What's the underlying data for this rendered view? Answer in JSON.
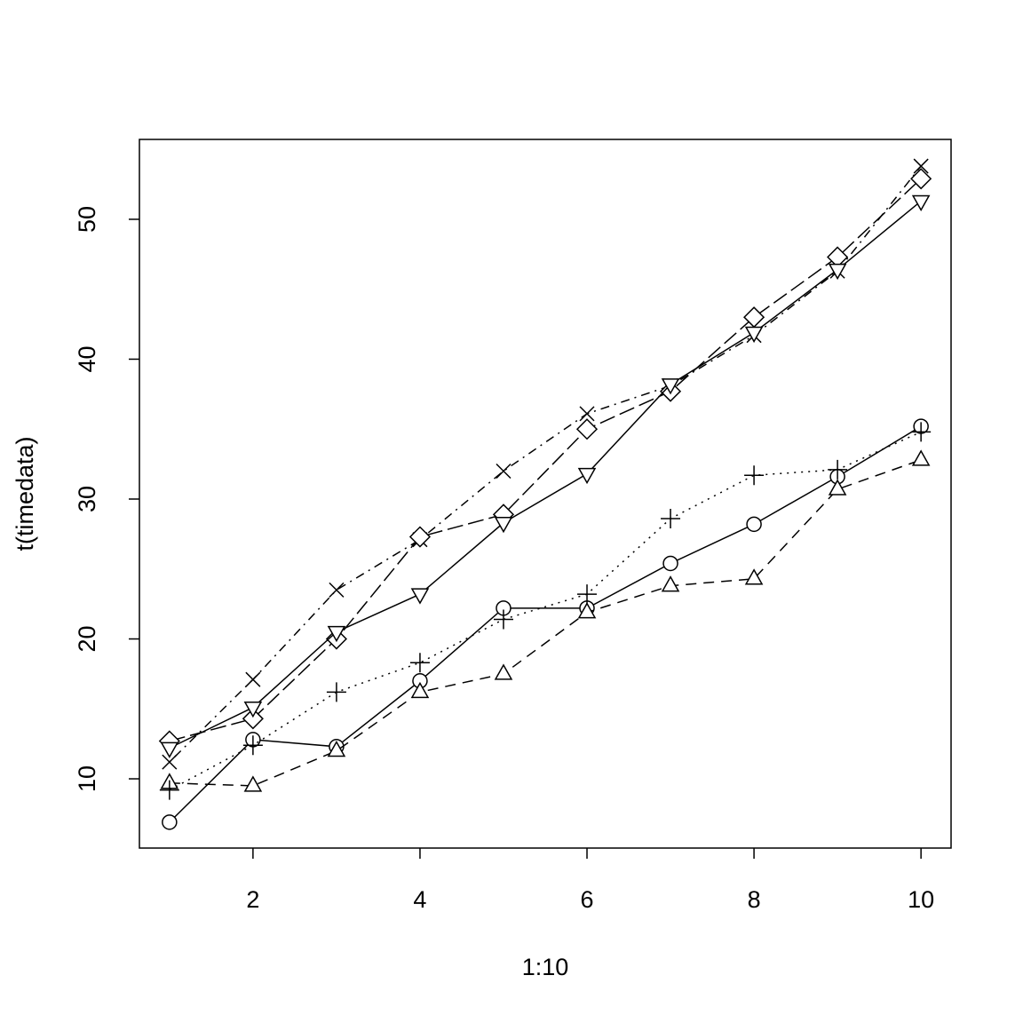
{
  "chart_data": {
    "type": "line",
    "x_label": "1:10",
    "y_label": "t(timedata)",
    "x": [
      1,
      2,
      3,
      4,
      5,
      6,
      7,
      8,
      9,
      10
    ],
    "series": [
      {
        "color": "#000000",
        "marker": "circle",
        "dash": "solid",
        "values": [
          6.9,
          12.8,
          12.3,
          17.0,
          22.2,
          22.2,
          25.4,
          28.2,
          31.6,
          35.2
        ]
      },
      {
        "color": "#000000",
        "marker": "triangle",
        "dash": "dashed",
        "values": [
          9.7,
          9.5,
          12.0,
          16.2,
          17.5,
          21.9,
          23.8,
          24.3,
          30.7,
          32.8
        ]
      },
      {
        "color": "#000000",
        "marker": "plus",
        "dash": "dotted",
        "values": [
          9.2,
          12.4,
          16.2,
          18.3,
          21.4,
          23.2,
          28.6,
          31.7,
          32.1,
          34.8
        ]
      },
      {
        "color": "#000000",
        "marker": "cross",
        "dash": "dotdash",
        "values": [
          11.2,
          17.1,
          23.5,
          27.1,
          32.0,
          36.1,
          38.1,
          41.7,
          46.3,
          53.8
        ]
      },
      {
        "color": "#000000",
        "marker": "diamond",
        "dash": "longdash",
        "values": [
          12.7,
          14.3,
          20.0,
          27.3,
          28.9,
          35.0,
          37.7,
          43.0,
          47.3,
          52.9
        ]
      },
      {
        "color": "#000000",
        "marker": "triangle-down",
        "dash": "solid",
        "values": [
          12.2,
          15.1,
          20.5,
          23.2,
          28.3,
          31.8,
          38.2,
          41.9,
          46.4,
          51.3
        ]
      }
    ],
    "xlim": [
      0.64,
      10.36
    ],
    "ylim": [
      5.05,
      55.71
    ],
    "xticks": [
      2,
      4,
      6,
      8,
      10
    ],
    "yticks": [
      10,
      20,
      30,
      40,
      50
    ],
    "grid": false
  }
}
